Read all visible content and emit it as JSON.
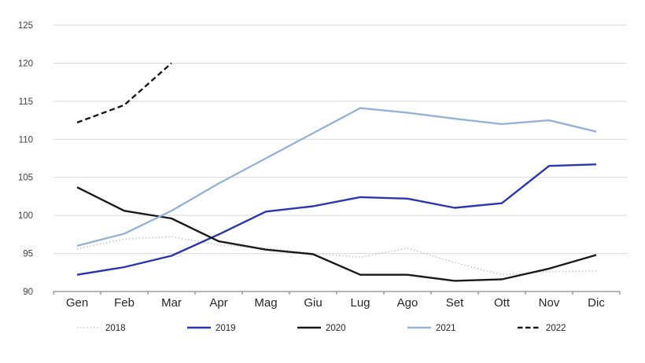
{
  "chart_data": {
    "type": "line",
    "title": "",
    "xlabel": "",
    "ylabel": "",
    "categories": [
      "Gen",
      "Feb",
      "Mar",
      "Apr",
      "Mag",
      "Giu",
      "Lug",
      "Ago",
      "Set",
      "Ott",
      "Nov",
      "Dic"
    ],
    "y_axis": {
      "min": 90,
      "max": 125,
      "step": 5,
      "tick_labels": [
        "125",
        "120",
        "115",
        "110",
        "105",
        "100",
        "95",
        "90"
      ]
    },
    "grid": true,
    "legend_position": "bottom",
    "series": [
      {
        "name": "2018",
        "color": "#b9c3dc",
        "line_style": "dotted",
        "values": [
          95.6,
          96.9,
          97.2,
          96.1,
          95.7,
          95.0,
          94.5,
          95.7,
          93.8,
          92.2,
          92.6,
          92.7
        ]
      },
      {
        "name": "2019",
        "color": "#2a35b5",
        "line_style": "solid",
        "values": [
          92.2,
          93.2,
          94.7,
          97.5,
          100.5,
          101.2,
          102.4,
          102.2,
          101.0,
          101.6,
          106.5,
          106.7
        ]
      },
      {
        "name": "2020",
        "color": "#1a1a1a",
        "line_style": "solid",
        "values": [
          103.7,
          100.6,
          99.6,
          96.6,
          95.5,
          94.9,
          92.2,
          92.2,
          91.4,
          91.6,
          93.0,
          94.8
        ]
      },
      {
        "name": "2021",
        "color": "#95b3d7",
        "line_style": "solid",
        "values": [
          96.0,
          97.6,
          100.6,
          104.2,
          107.5,
          110.8,
          114.1,
          113.5,
          112.7,
          112.0,
          112.5,
          111.0
        ]
      },
      {
        "name": "2022",
        "color": "#1a1a1a",
        "line_style": "dashed",
        "values": [
          112.2,
          114.5,
          120.0,
          null,
          null,
          null,
          null,
          null,
          null,
          null,
          null,
          null
        ]
      }
    ]
  },
  "colors": {
    "background": "#ffffff",
    "gridline": "#d9d9d9",
    "axis_line": "#898989",
    "y_tick_label": "#404040",
    "x_tick_label": "#262626",
    "legend_label": "#262626"
  }
}
